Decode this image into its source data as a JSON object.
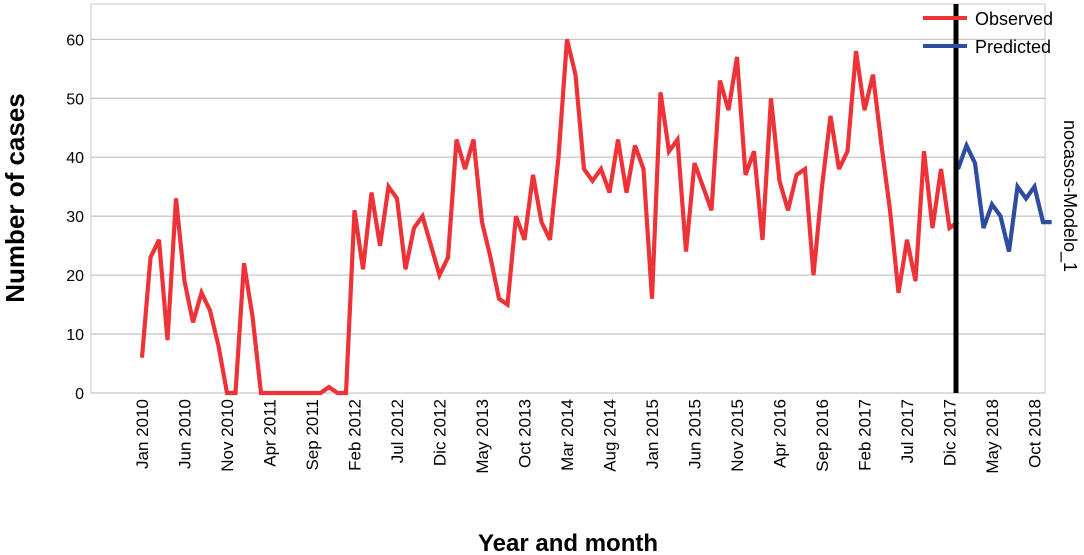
{
  "chart_data": {
    "type": "line",
    "xlabel": "Year and month",
    "ylabel": "Number of cases",
    "side_label": "nocasos-Modelo_1",
    "ylim": [
      0,
      66
    ],
    "yticks": [
      0,
      10,
      20,
      30,
      40,
      50,
      60
    ],
    "grid": "horizontal",
    "legend_position": "top-right",
    "forecast_start": "Jan 2018",
    "x_tick_labels": [
      "Jan 2010",
      "Jun 2010",
      "Nov 2010",
      "Apr 2011",
      "Sep 2011",
      "Feb 2012",
      "Jul 2012",
      "Dic 2012",
      "May 2013",
      "Oct 2013",
      "Mar 2014",
      "Aug 2014",
      "Jan 2015",
      "Jun 2015",
      "Nov 2015",
      "Apr 2016",
      "Sep 2016",
      "Feb 2017",
      "Jul 2017",
      "Dic 2017",
      "May 2018",
      "Oct 2018"
    ],
    "series": [
      {
        "name": "Observed",
        "color": "#ee3338",
        "start": "Jan 2010",
        "values": [
          6,
          23,
          26,
          9,
          33,
          19,
          12,
          17,
          14,
          8,
          0,
          0,
          22,
          13,
          0,
          0,
          0,
          0,
          0,
          0,
          0,
          0,
          1,
          0,
          0,
          31,
          21,
          34,
          25,
          35,
          33,
          21,
          28,
          30,
          25,
          20,
          23,
          43,
          38,
          43,
          29,
          23,
          16,
          15,
          30,
          26,
          37,
          29,
          26,
          40,
          60,
          54,
          38,
          36,
          38,
          34,
          43,
          34,
          42,
          38,
          16,
          51,
          41,
          43,
          24,
          39,
          35,
          31,
          53,
          48,
          57,
          37,
          41,
          26,
          50,
          36,
          31,
          37,
          38,
          20,
          35,
          47,
          38,
          41,
          58,
          48,
          54,
          42,
          31,
          17,
          26,
          19,
          41,
          28,
          38,
          28,
          29
        ]
      },
      {
        "name": "Predicted",
        "color": "#2e4da0",
        "start": "Jan 2018",
        "values": [
          38,
          42,
          39,
          28,
          32,
          30,
          24,
          35,
          33,
          35,
          29,
          29
        ]
      }
    ]
  }
}
